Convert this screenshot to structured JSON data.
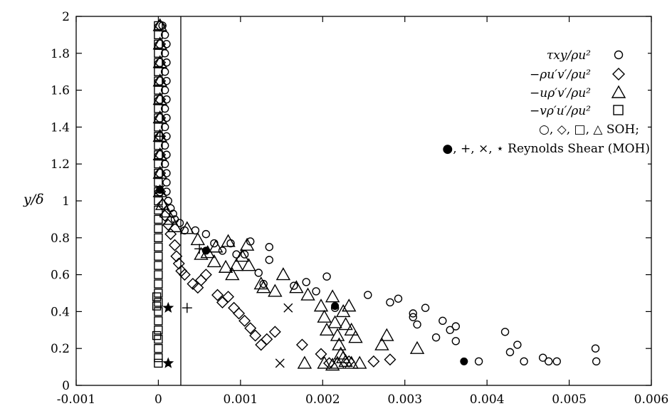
{
  "chart_data": {
    "type": "scatter",
    "title": "",
    "xlabel": "",
    "ylabel": "y/δ",
    "xlim": [
      -0.001,
      0.006
    ],
    "ylim": [
      0,
      2
    ],
    "x_ticks": [
      -0.001,
      0,
      0.001,
      0.002,
      0.003,
      0.004,
      0.005,
      0.006
    ],
    "x_tick_labels": [
      "-0.001",
      "0",
      "0.001",
      "0.002",
      "0.003",
      "0.004",
      "0.005",
      "0.006"
    ],
    "y_ticks": [
      0,
      0.2,
      0.4,
      0.6,
      0.8,
      1,
      1.2,
      1.4,
      1.6,
      1.8,
      2
    ],
    "y_tick_labels": [
      "0",
      "0.2",
      "0.4",
      "0.6",
      "0.8",
      "1",
      "1.2",
      "1.4",
      "1.6",
      "1.8",
      "2"
    ],
    "grid": false,
    "legend_position": "top-right",
    "legend": [
      {
        "label": "τxy/ρu²",
        "marker": "circle"
      },
      {
        "label": "−ρu′v′/ρu²",
        "marker": "diamond"
      },
      {
        "label": "−uρ′v′/ρu²",
        "marker": "triangle"
      },
      {
        "label": "−vρ′u′/ρu²",
        "marker": "square"
      }
    ],
    "legend_notes": [
      "○, ◇, □, △ SOH;",
      "●, +, ×, ⋆ Reynolds Shear (MOH)"
    ],
    "series": [
      {
        "name": "τxy/ρu²",
        "marker": "circle",
        "points": [
          [
            5e-05,
            1.95
          ],
          [
            8e-05,
            1.9
          ],
          [
            0.0001,
            1.85
          ],
          [
            8e-05,
            1.8
          ],
          [
            0.0001,
            1.75
          ],
          [
            8e-05,
            1.7
          ],
          [
            0.0001,
            1.65
          ],
          [
            8e-05,
            1.6
          ],
          [
            0.0001,
            1.55
          ],
          [
            8e-05,
            1.5
          ],
          [
            0.0001,
            1.45
          ],
          [
            8e-05,
            1.4
          ],
          [
            0.0001,
            1.35
          ],
          [
            8e-05,
            1.3
          ],
          [
            0.0001,
            1.25
          ],
          [
            8e-05,
            1.2
          ],
          [
            0.0001,
            1.15
          ],
          [
            0.0001,
            1.1
          ],
          [
            0.0001,
            1.05
          ],
          [
            0.00012,
            1.0
          ],
          [
            0.00015,
            0.96
          ],
          [
            0.00018,
            0.93
          ],
          [
            0.0002,
            0.9
          ],
          [
            0.00026,
            0.88
          ],
          [
            0.00032,
            0.84
          ],
          [
            0.00045,
            0.84
          ],
          [
            0.00058,
            0.82
          ],
          [
            0.00068,
            0.77
          ],
          [
            0.00078,
            0.73
          ],
          [
            0.00088,
            0.77
          ],
          [
            0.00095,
            0.71
          ],
          [
            0.00105,
            0.71
          ],
          [
            0.00112,
            0.78
          ],
          [
            0.00122,
            0.61
          ],
          [
            0.00128,
            0.55
          ],
          [
            0.00135,
            0.68
          ],
          [
            0.00135,
            0.75
          ],
          [
            0.00165,
            0.54
          ],
          [
            0.0018,
            0.56
          ],
          [
            0.00192,
            0.51
          ],
          [
            0.00205,
            0.59
          ],
          [
            0.00215,
            0.42
          ],
          [
            0.00255,
            0.49
          ],
          [
            0.00282,
            0.45
          ],
          [
            0.00292,
            0.47
          ],
          [
            0.0031,
            0.39
          ],
          [
            0.0031,
            0.37
          ],
          [
            0.00315,
            0.33
          ],
          [
            0.00325,
            0.42
          ],
          [
            0.00338,
            0.26
          ],
          [
            0.00346,
            0.35
          ],
          [
            0.00355,
            0.3
          ],
          [
            0.00362,
            0.24
          ],
          [
            0.00362,
            0.32
          ],
          [
            0.0039,
            0.13
          ],
          [
            0.00422,
            0.29
          ],
          [
            0.00428,
            0.18
          ],
          [
            0.00437,
            0.22
          ],
          [
            0.00445,
            0.13
          ],
          [
            0.00468,
            0.15
          ],
          [
            0.00475,
            0.13
          ],
          [
            0.00485,
            0.13
          ],
          [
            0.00532,
            0.2
          ],
          [
            0.00533,
            0.13
          ]
        ]
      },
      {
        "name": "−ρu′v′/ρu²",
        "marker": "diamond",
        "points": [
          [
            2e-05,
            1.95
          ],
          [
            2e-05,
            1.85
          ],
          [
            2e-05,
            1.75
          ],
          [
            2e-05,
            1.65
          ],
          [
            2e-05,
            1.55
          ],
          [
            2e-05,
            1.45
          ],
          [
            2e-05,
            1.35
          ],
          [
            2e-05,
            1.25
          ],
          [
            2e-05,
            1.15
          ],
          [
            2e-05,
            1.05
          ],
          [
            5e-05,
            0.98
          ],
          [
            8e-05,
            0.92
          ],
          [
            0.00012,
            0.87
          ],
          [
            0.00015,
            0.82
          ],
          [
            0.0002,
            0.76
          ],
          [
            0.00022,
            0.7
          ],
          [
            0.00025,
            0.66
          ],
          [
            0.00028,
            0.62
          ],
          [
            0.00032,
            0.6
          ],
          [
            0.00042,
            0.55
          ],
          [
            0.00048,
            0.53
          ],
          [
            0.00052,
            0.57
          ],
          [
            0.00058,
            0.6
          ],
          [
            0.00072,
            0.49
          ],
          [
            0.00078,
            0.45
          ],
          [
            0.00085,
            0.48
          ],
          [
            0.00092,
            0.42
          ],
          [
            0.00098,
            0.39
          ],
          [
            0.00105,
            0.35
          ],
          [
            0.00112,
            0.31
          ],
          [
            0.00118,
            0.27
          ],
          [
            0.00125,
            0.22
          ],
          [
            0.00132,
            0.25
          ],
          [
            0.00142,
            0.29
          ],
          [
            0.00175,
            0.22
          ],
          [
            0.00198,
            0.17
          ],
          [
            0.00208,
            0.12
          ],
          [
            0.00232,
            0.13
          ],
          [
            0.00262,
            0.13
          ],
          [
            0.00282,
            0.14
          ]
        ]
      },
      {
        "name": "−uρ′v′/ρu²",
        "marker": "triangle",
        "points": [
          [
            2e-05,
            1.95
          ],
          [
            2e-05,
            1.85
          ],
          [
            2e-05,
            1.75
          ],
          [
            2e-05,
            1.65
          ],
          [
            2e-05,
            1.55
          ],
          [
            2e-05,
            1.45
          ],
          [
            2e-05,
            1.35
          ],
          [
            2e-05,
            1.25
          ],
          [
            2e-05,
            1.15
          ],
          [
            2e-05,
            1.05
          ],
          [
            5e-05,
            0.98
          ],
          [
            0.0001,
            0.94
          ],
          [
            0.00015,
            0.9
          ],
          [
            0.0002,
            0.86
          ],
          [
            0.00035,
            0.85
          ],
          [
            0.00048,
            0.79
          ],
          [
            0.00052,
            0.71
          ],
          [
            0.0006,
            0.72
          ],
          [
            0.00068,
            0.67
          ],
          [
            0.0007,
            0.75
          ],
          [
            0.00082,
            0.64
          ],
          [
            0.00085,
            0.78
          ],
          [
            0.0009,
            0.6
          ],
          [
            0.00095,
            0.65
          ],
          [
            0.00102,
            0.7
          ],
          [
            0.00108,
            0.76
          ],
          [
            0.0011,
            0.65
          ],
          [
            0.00125,
            0.55
          ],
          [
            0.00128,
            0.53
          ],
          [
            0.00142,
            0.51
          ],
          [
            0.00152,
            0.6
          ],
          [
            0.00168,
            0.53
          ],
          [
            0.00182,
            0.49
          ],
          [
            0.00198,
            0.43
          ],
          [
            0.00202,
            0.37
          ],
          [
            0.00205,
            0.3
          ],
          [
            0.00212,
            0.48
          ],
          [
            0.00215,
            0.34
          ],
          [
            0.00218,
            0.27
          ],
          [
            0.0022,
            0.22
          ],
          [
            0.00222,
            0.17
          ],
          [
            0.00225,
            0.4
          ],
          [
            0.00228,
            0.33
          ],
          [
            0.00232,
            0.43
          ],
          [
            0.00235,
            0.3
          ],
          [
            0.0024,
            0.26
          ],
          [
            0.00178,
            0.12
          ],
          [
            0.00202,
            0.12
          ],
          [
            0.00212,
            0.11
          ],
          [
            0.00218,
            0.12
          ],
          [
            0.00225,
            0.15
          ],
          [
            0.00228,
            0.13
          ],
          [
            0.00235,
            0.12
          ],
          [
            0.00245,
            0.12
          ],
          [
            0.00272,
            0.22
          ],
          [
            0.00278,
            0.27
          ],
          [
            0.00315,
            0.2
          ]
        ]
      },
      {
        "name": "−vρ′u′/ρu²",
        "marker": "square",
        "points": [
          [
            0.0,
            1.95
          ],
          [
            0.0,
            1.9
          ],
          [
            0.0,
            1.85
          ],
          [
            0.0,
            1.8
          ],
          [
            0.0,
            1.75
          ],
          [
            0.0,
            1.7
          ],
          [
            0.0,
            1.65
          ],
          [
            0.0,
            1.6
          ],
          [
            0.0,
            1.55
          ],
          [
            0.0,
            1.5
          ],
          [
            0.0,
            1.45
          ],
          [
            0.0,
            1.4
          ],
          [
            0.0,
            1.35
          ],
          [
            0.0,
            1.3
          ],
          [
            0.0,
            1.25
          ],
          [
            0.0,
            1.2
          ],
          [
            0.0,
            1.15
          ],
          [
            0.0,
            1.1
          ],
          [
            0.0,
            1.05
          ],
          [
            0.0,
            1.0
          ],
          [
            0.0,
            0.95
          ],
          [
            0.0,
            0.9
          ],
          [
            0.0,
            0.85
          ],
          [
            0.0,
            0.8
          ],
          [
            0.0,
            0.75
          ],
          [
            0.0,
            0.7
          ],
          [
            0.0,
            0.65
          ],
          [
            0.0,
            0.6
          ],
          [
            0.0,
            0.55
          ],
          [
            0.0,
            0.5
          ],
          [
            0.0,
            0.45
          ],
          [
            0.0,
            0.4
          ],
          [
            0.0,
            0.35
          ],
          [
            0.0,
            0.3
          ],
          [
            0.0,
            0.25
          ],
          [
            0.0,
            0.2
          ],
          [
            0.0,
            0.15
          ],
          [
            0.0,
            0.12
          ],
          [
            -2e-05,
            0.48
          ],
          [
            -2e-05,
            0.43
          ],
          [
            -2e-05,
            0.27
          ]
        ]
      },
      {
        "name": "Reynolds Shear (MOH) ●",
        "marker": "dot",
        "points": [
          [
            2e-05,
            1.06
          ],
          [
            0.00058,
            0.73
          ],
          [
            0.00215,
            0.43
          ],
          [
            0.00372,
            0.13
          ]
        ]
      },
      {
        "name": "Reynolds Shear (MOH) +",
        "marker": "plus",
        "points": [
          [
            2e-05,
            1.35
          ],
          [
            0.00035,
            0.42
          ],
          [
            0.0005,
            0.74
          ]
        ]
      },
      {
        "name": "Reynolds Shear (MOH) ×",
        "marker": "cross",
        "points": [
          [
            2e-05,
            1.06
          ],
          [
            0.00158,
            0.42
          ],
          [
            0.00148,
            0.12
          ]
        ]
      },
      {
        "name": "Reynolds Shear (MOH) ⋆",
        "marker": "star",
        "points": [
          [
            0.00012,
            0.42
          ],
          [
            0.00012,
            0.12
          ]
        ]
      }
    ]
  }
}
